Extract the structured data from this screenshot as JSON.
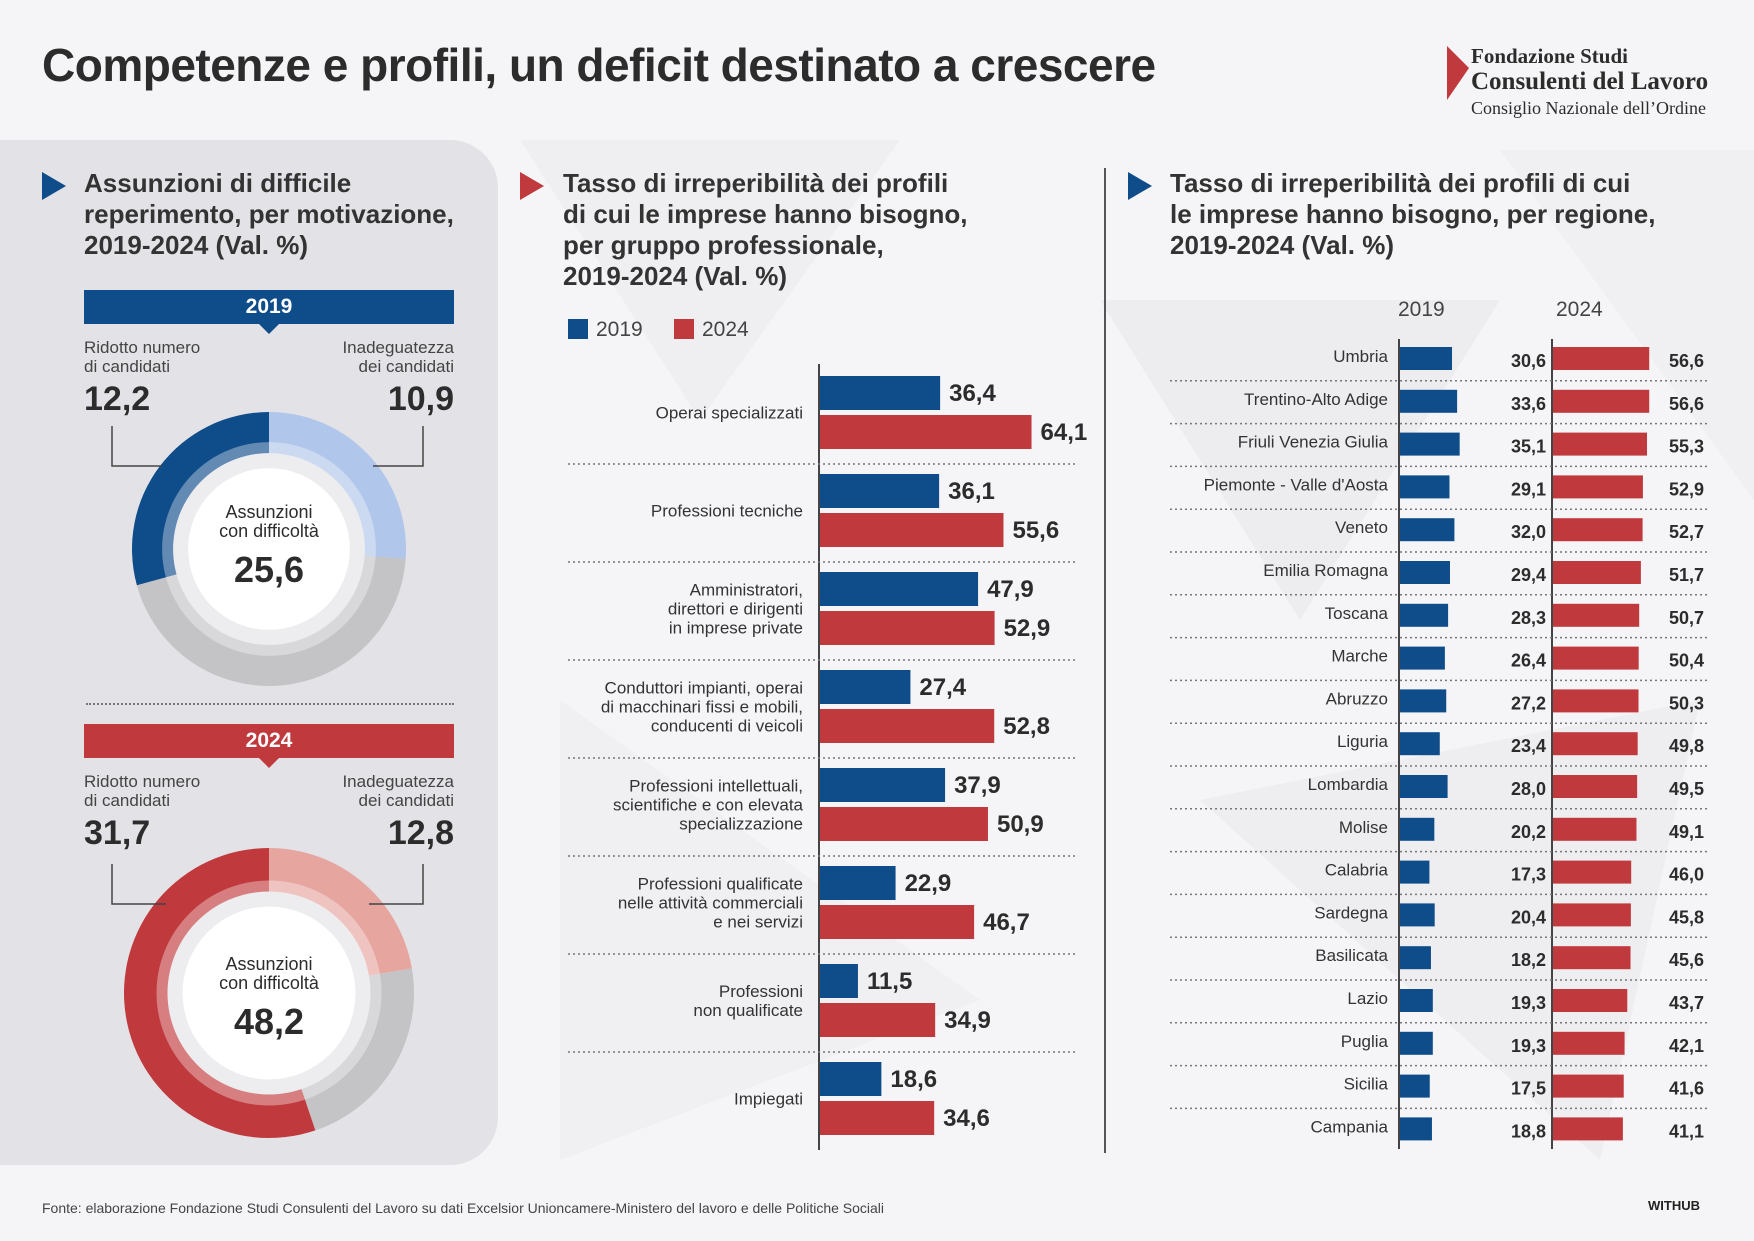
{
  "title": "Competenze e profili, un deficit destinato a crescere",
  "logo": {
    "line1": "Fondazione Studi",
    "line2": "Consulenti del Lavoro",
    "line3": "Consiglio Nazionale dell’Ordine"
  },
  "colors": {
    "blue": "#0f4c8a",
    "red": "#c0393d",
    "light_blue": "#b0c6ea",
    "light_red": "#e6a59f",
    "grey": "#c4c4c7"
  },
  "panel1": {
    "title_lines": [
      "Assunzioni di difficile",
      "reperimento, per motivazione,",
      "2019-2024 (Val. %)"
    ],
    "donuts": [
      {
        "year": "2019",
        "left_label_lines": [
          "Ridotto numero",
          "di candidati"
        ],
        "left_value": "12,2",
        "right_label_lines": [
          "Inadeguatezza",
          "dei candidati"
        ],
        "right_value": "10,9",
        "center_lines": [
          "Assunzioni",
          "con difficoltà"
        ],
        "center_value": "25,6"
      },
      {
        "year": "2024",
        "left_label_lines": [
          "Ridotto numero",
          "di candidati"
        ],
        "left_value": "31,7",
        "right_label_lines": [
          "Inadeguatezza",
          "dei candidati"
        ],
        "right_value": "12,8",
        "center_lines": [
          "Assunzioni",
          "con difficoltà"
        ],
        "center_value": "48,2"
      }
    ]
  },
  "panel2": {
    "title_lines": [
      "Tasso di irreperibilità dei profili",
      "di cui le imprese hanno bisogno,",
      "per gruppo professionale,",
      "2019-2024 (Val. %)"
    ],
    "legend": [
      "2019",
      "2024"
    ]
  },
  "panel3": {
    "title_lines": [
      "Tasso di irreperibilità dei profili di cui",
      "le imprese hanno bisogno, per regione,",
      "2019-2024 (Val. %)"
    ],
    "year_headers": [
      "2019",
      "2024"
    ]
  },
  "chart_data": [
    {
      "type": "pie",
      "title": "2019",
      "categories": [
        "Ridotto numero di candidati",
        "Inadeguatezza dei candidati"
      ],
      "values": [
        12.2,
        10.9
      ],
      "labels": [
        "12,2",
        "10,9"
      ],
      "total": 25.6
    },
    {
      "type": "pie",
      "title": "2024",
      "categories": [
        "Ridotto numero di candidati",
        "Inadeguatezza dei candidati"
      ],
      "values": [
        31.7,
        12.8
      ],
      "labels": [
        "31,7",
        "12,8"
      ],
      "total": 48.2
    },
    {
      "type": "bar",
      "orientation": "horizontal",
      "categories": [
        [
          "Operai specializzati"
        ],
        [
          "Professioni tecniche"
        ],
        [
          "Amministratori,",
          "direttori e dirigenti",
          "in imprese private"
        ],
        [
          "Conduttori impianti, operai",
          "di macchinari fissi e mobili,",
          "conducenti di veicoli"
        ],
        [
          "Professioni intellettuali,",
          "scientifiche e con elevata",
          "specializzazione"
        ],
        [
          "Professioni qualificate",
          "nelle attività commerciali",
          "e nei servizi"
        ],
        [
          "Professioni",
          "non qualificate"
        ],
        [
          "Impiegati"
        ]
      ],
      "series": [
        {
          "name": "2019",
          "values": [
            36.4,
            36.1,
            47.9,
            27.4,
            37.9,
            22.9,
            11.5,
            18.6
          ],
          "labels": [
            "36,4",
            "36,1",
            "47,9",
            "27,4",
            "37,9",
            "22,9",
            "11,5",
            "18,6"
          ]
        },
        {
          "name": "2024",
          "values": [
            64.1,
            55.6,
            52.9,
            52.8,
            50.9,
            46.7,
            34.9,
            34.6
          ],
          "labels": [
            "64,1",
            "55,6",
            "52,9",
            "52,8",
            "50,9",
            "46,7",
            "34,9",
            "34,6"
          ]
        }
      ],
      "legend": "top-left"
    },
    {
      "type": "bar",
      "orientation": "horizontal",
      "categories": [
        "Umbria",
        "Trentino-Alto Adige",
        "Friuli Venezia Giulia",
        "Piemonte - Valle d'Aosta",
        "Veneto",
        "Emilia Romagna",
        "Toscana",
        "Marche",
        "Abruzzo",
        "Liguria",
        "Lombardia",
        "Molise",
        "Calabria",
        "Sardegna",
        "Basilicata",
        "Lazio",
        "Puglia",
        "Sicilia",
        "Campania"
      ],
      "series": [
        {
          "name": "2019",
          "values": [
            30.6,
            33.6,
            35.1,
            29.1,
            32.0,
            29.4,
            28.3,
            26.4,
            27.2,
            23.4,
            28.0,
            20.2,
            17.3,
            20.4,
            18.2,
            19.3,
            19.3,
            17.5,
            18.8
          ],
          "labels": [
            "30,6",
            "33,6",
            "35,1",
            "29,1",
            "32,0",
            "29,4",
            "28,3",
            "26,4",
            "27,2",
            "23,4",
            "28,0",
            "20,2",
            "17,3",
            "20,4",
            "18,2",
            "19,3",
            "19,3",
            "17,5",
            "18,8"
          ]
        },
        {
          "name": "2024",
          "values": [
            56.6,
            56.6,
            55.3,
            52.9,
            52.7,
            51.7,
            50.7,
            50.4,
            50.3,
            49.8,
            49.5,
            49.1,
            46.0,
            45.8,
            45.6,
            43.7,
            42.1,
            41.6,
            41.1
          ],
          "labels": [
            "56,6",
            "56,6",
            "55,3",
            "52,9",
            "52,7",
            "51,7",
            "50,7",
            "50,4",
            "50,3",
            "49,8",
            "49,5",
            "49,1",
            "46,0",
            "45,8",
            "45,6",
            "43,7",
            "42,1",
            "41,6",
            "41,1"
          ]
        }
      ]
    }
  ],
  "footer": "Fonte: elaborazione Fondazione Studi Consulenti del Lavoro su dati Excelsior Unioncamere-Ministero del lavoro e delle Politiche Sociali",
  "credit": "WITHUB"
}
